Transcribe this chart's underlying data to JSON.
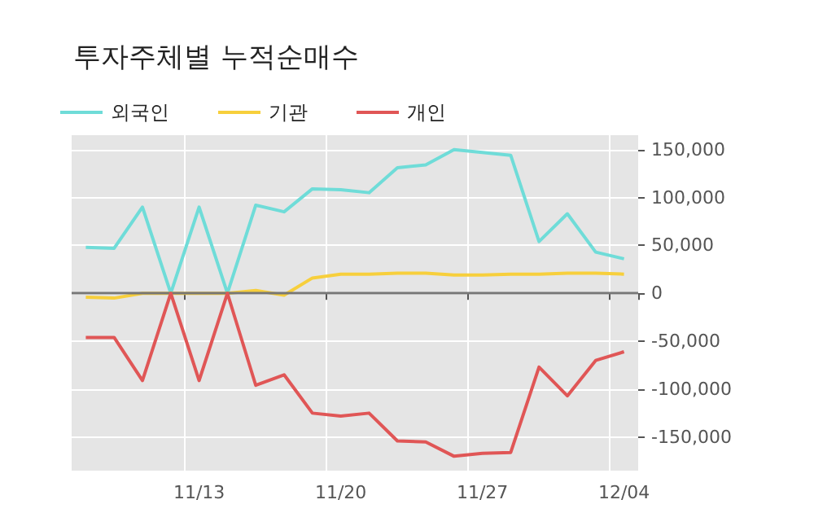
{
  "chart_data": {
    "type": "line",
    "title": "투자주체별 누적순매수",
    "categories": [
      null,
      null,
      null,
      null,
      "11/13",
      null,
      null,
      null,
      null,
      "11/20",
      null,
      null,
      null,
      null,
      "11/27",
      null,
      null,
      null,
      null,
      "12/04"
    ],
    "series": [
      {
        "name": "외국인",
        "color": "#6fdcd8",
        "values": [
          48000,
          47000,
          90000,
          0,
          90000,
          0,
          92000,
          85000,
          109000,
          108000,
          105000,
          131000,
          134000,
          150000,
          147000,
          144000,
          54000,
          83000,
          43000,
          36000
        ]
      },
      {
        "name": "기관",
        "color": "#f7cf3c",
        "values": [
          -4000,
          -5000,
          0,
          0,
          0,
          0,
          3000,
          -2000,
          16000,
          20000,
          20000,
          21000,
          21000,
          19000,
          19000,
          20000,
          20000,
          21000,
          21000,
          20000
        ]
      },
      {
        "name": "개인",
        "color": "#e05656",
        "values": [
          -46000,
          -46000,
          -91000,
          0,
          -91000,
          0,
          -96000,
          -85000,
          -125000,
          -128000,
          -125000,
          -154000,
          -155000,
          -170000,
          -167000,
          -166000,
          -77000,
          -107000,
          -70000,
          -61000
        ]
      }
    ],
    "ylim": [
      -185000,
      165000
    ],
    "yticks": [
      {
        "value": -150000,
        "label": "-150,000"
      },
      {
        "value": -100000,
        "label": "-100,000"
      },
      {
        "value": -50000,
        "label": "-50,000"
      },
      0,
      {
        "value": 50000,
        "label": "50,000"
      },
      {
        "value": 100000,
        "label": "100,000"
      },
      {
        "value": 150000,
        "label": "150,000"
      }
    ],
    "ref_lines": [
      {
        "axis": "y",
        "value": 0,
        "color": "#777777"
      }
    ],
    "grid": true,
    "legend": "top left",
    "marker": "none",
    "line_style": "solid"
  }
}
